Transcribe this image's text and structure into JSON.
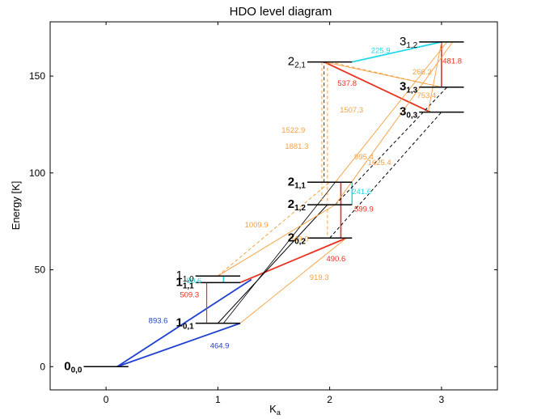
{
  "chart_data": {
    "type": "level-diagram",
    "title": "HDO level diagram",
    "xlabel_main": "K",
    "xlabel_sub": "a",
    "ylabel": "Energy [K]",
    "xlim": [
      -0.5,
      3.5
    ],
    "ylim": [
      -12,
      178
    ],
    "xticks": [
      0,
      1,
      2,
      3
    ],
    "yticks": [
      0,
      50,
      100,
      150
    ],
    "colors": {
      "blue": "#1f3fd0",
      "red": "#e8321e",
      "orange": "#f5a040",
      "cyan": "#22d8e8",
      "black": "#000000"
    },
    "levels": [
      {
        "id": "0_00",
        "main": "0",
        "sub": "0,0",
        "bold": true,
        "x1": -0.2,
        "x2": 0.2,
        "energy": 0
      },
      {
        "id": "1_01",
        "main": "1",
        "sub": "0,1",
        "bold": true,
        "x1": 0.8,
        "x2": 1.2,
        "energy": 22.4
      },
      {
        "id": "1_11",
        "main": "1",
        "sub": "1,1",
        "bold": true,
        "x1": 0.8,
        "x2": 1.2,
        "energy": 43.4
      },
      {
        "id": "1_10",
        "main": "1",
        "sub": "1,0",
        "bold": false,
        "x1": 0.8,
        "x2": 1.2,
        "energy": 46.8
      },
      {
        "id": "2_02",
        "main": "2",
        "sub": "0,2",
        "bold": true,
        "x1": 1.8,
        "x2": 2.2,
        "energy": 66.4
      },
      {
        "id": "2_12",
        "main": "2",
        "sub": "1,2",
        "bold": true,
        "x1": 1.8,
        "x2": 2.2,
        "energy": 83.6
      },
      {
        "id": "2_11",
        "main": "2",
        "sub": "1,1",
        "bold": true,
        "x1": 1.8,
        "x2": 2.2,
        "energy": 95.2
      },
      {
        "id": "2_21",
        "main": "2",
        "sub": "2,1",
        "bold": false,
        "x1": 1.8,
        "x2": 2.2,
        "energy": 157.3
      },
      {
        "id": "3_03",
        "main": "3",
        "sub": "0,3",
        "bold": true,
        "x1": 2.8,
        "x2": 3.2,
        "energy": 131.4
      },
      {
        "id": "3_13",
        "main": "3",
        "sub": "1,3",
        "bold": true,
        "x1": 2.8,
        "x2": 3.2,
        "energy": 144.3
      },
      {
        "id": "3_12",
        "main": "3",
        "sub": "1,2",
        "bold": false,
        "x1": 2.8,
        "x2": 3.2,
        "energy": 167.6
      }
    ],
    "transitions": [
      {
        "from": [
          0.1,
          0
        ],
        "to": [
          1.3,
          45
        ],
        "color": "blue",
        "width": 1.8,
        "dash": false,
        "label": "893.6"
      },
      {
        "from": [
          0.1,
          0
        ],
        "to": [
          1.2,
          22.4
        ],
        "color": "blue",
        "width": 1.8,
        "dash": false,
        "label": "464.9"
      },
      {
        "from": [
          0.9,
          22.4
        ],
        "to": [
          0.9,
          43.4
        ],
        "color": "red",
        "width": 1.2,
        "dash": false,
        "label": "509.3"
      },
      {
        "from": [
          1.2,
          43.4
        ],
        "to": [
          2.15,
          66.4
        ],
        "color": "red",
        "width": 1.8,
        "dash": false,
        "label": "490.6"
      },
      {
        "from": [
          2.1,
          66.4
        ],
        "to": [
          2.1,
          95.2
        ],
        "color": "red",
        "width": 1.6,
        "dash": false,
        "label": ""
      },
      {
        "from": [
          2.2,
          83.6
        ],
        "to": [
          2.2,
          95.2
        ],
        "color": "cyan",
        "width": 1.5,
        "dash": false,
        "label": "241.6"
      },
      {
        "from": [
          1.05,
          43.4
        ],
        "to": [
          1.05,
          46.8
        ],
        "color": "cyan",
        "width": 1.5,
        "dash": false,
        "label": "80.6"
      },
      {
        "from": [
          2.2,
          157.3
        ],
        "to": [
          3.0,
          167.6
        ],
        "color": "cyan",
        "width": 1.8,
        "dash": false,
        "label": "225.9"
      },
      {
        "from": [
          3.0,
          144.3
        ],
        "to": [
          3.0,
          167.6
        ],
        "color": "red",
        "width": 1.6,
        "dash": false,
        "label": "481.8"
      },
      {
        "from": [
          1.95,
          157.3
        ],
        "to": [
          2.9,
          131.4
        ],
        "color": "red",
        "width": 1.8,
        "dash": false,
        "label": "537.8"
      },
      {
        "from": [
          1.0,
          22.4
        ],
        "to": [
          1.98,
          83.6
        ],
        "color": "black",
        "width": 1.0,
        "dash": false,
        "label": ""
      },
      {
        "from": [
          1.05,
          22.4
        ],
        "to": [
          2.05,
          95.2
        ],
        "color": "black",
        "width": 0.8,
        "dash": false,
        "label": ""
      },
      {
        "from": [
          2.0,
          66.4
        ],
        "to": [
          3.0,
          131.4
        ],
        "color": "black",
        "width": 1.0,
        "dash": true,
        "label": ""
      },
      {
        "from": [
          2.05,
          83.6
        ],
        "to": [
          3.05,
          144.3
        ],
        "color": "black",
        "width": 1.0,
        "dash": true,
        "label": ""
      },
      {
        "from": [
          1.95,
          95.2
        ],
        "to": [
          1.95,
          157.3
        ],
        "color": "black",
        "width": 0.8,
        "dash": true,
        "label": ""
      },
      {
        "from": [
          1.0,
          46.8
        ],
        "to": [
          2.0,
          95.2
        ],
        "color": "orange",
        "width": 1.0,
        "dash": true,
        "label": "1009.9"
      },
      {
        "from": [
          1.0,
          46.8
        ],
        "to": [
          2.05,
          83.6
        ],
        "color": "orange",
        "width": 0.9,
        "dash": false,
        "label": "849.0"
      },
      {
        "from": [
          1.2,
          22.4
        ],
        "to": [
          2.15,
          66.4
        ],
        "color": "orange",
        "width": 0.9,
        "dash": false,
        "label": "919.3"
      },
      {
        "from": [
          1.93,
          157.3
        ],
        "to": [
          1.93,
          83.6
        ],
        "color": "orange",
        "width": 1.0,
        "dash": true,
        "label": "1522.9"
      },
      {
        "from": [
          1.98,
          157.3
        ],
        "to": [
          1.98,
          66.4
        ],
        "color": "orange",
        "width": 1.0,
        "dash": true,
        "label": "1881.3"
      },
      {
        "from": [
          2.0,
          157.3
        ],
        "to": [
          3.0,
          144.3
        ],
        "color": "orange",
        "width": 1.0,
        "dash": true,
        "label": "266.2"
      },
      {
        "from": [
          1.95,
          157.3
        ],
        "to": [
          3.0,
          144.3
        ],
        "color": "orange",
        "width": 0.9,
        "dash": false,
        "label": "1507.3"
      },
      {
        "from": [
          3.05,
          167.6
        ],
        "to": [
          2.05,
          95.2
        ],
        "color": "orange",
        "width": 0.9,
        "dash": false,
        "label": "995.4"
      },
      {
        "from": [
          3.1,
          167.6
        ],
        "to": [
          2.05,
          83.6
        ],
        "color": "orange",
        "width": 0.9,
        "dash": false,
        "label": "1625.4"
      },
      {
        "from": [
          3.0,
          167.6
        ],
        "to": [
          2.88,
          131.4
        ],
        "color": "orange",
        "width": 0.9,
        "dash": false,
        "label": "753.4"
      }
    ],
    "transition_labels": [
      {
        "text": "893.6",
        "x": 0.38,
        "y": 22.5,
        "color": "blue"
      },
      {
        "text": "464.9",
        "x": 0.93,
        "y": 9.6,
        "color": "blue"
      },
      {
        "text": "509.3",
        "x": 0.66,
        "y": 35.8,
        "color": "red"
      },
      {
        "text": "80.6",
        "x": 0.72,
        "y": 43.2,
        "color": "cyan"
      },
      {
        "text": "490.6",
        "x": 1.97,
        "y": 54.5,
        "color": "red"
      },
      {
        "text": "241.6",
        "x": 2.2,
        "y": 89.0,
        "color": "cyan"
      },
      {
        "text": "599.9",
        "x": 2.22,
        "y": 80.0,
        "color": "red"
      },
      {
        "text": "225.9",
        "x": 2.37,
        "y": 162.0,
        "color": "cyan"
      },
      {
        "text": "481.8",
        "x": 3.01,
        "y": 156.5,
        "color": "red"
      },
      {
        "text": "537.8",
        "x": 2.07,
        "y": 145.0,
        "color": "red"
      },
      {
        "text": "266.2",
        "x": 2.74,
        "y": 150.8,
        "color": "orange"
      },
      {
        "text": "753.4",
        "x": 2.78,
        "y": 138.8,
        "color": "orange"
      },
      {
        "text": "1507.3",
        "x": 2.09,
        "y": 131.3,
        "color": "orange"
      },
      {
        "text": "1522.9",
        "x": 1.57,
        "y": 120.8,
        "color": "orange"
      },
      {
        "text": "1881.3",
        "x": 1.6,
        "y": 112.5,
        "color": "orange"
      },
      {
        "text": "995.4",
        "x": 2.22,
        "y": 107.0,
        "color": "orange"
      },
      {
        "text": "1625.4",
        "x": 2.34,
        "y": 104.0,
        "color": "orange"
      },
      {
        "text": "1009.9",
        "x": 1.24,
        "y": 72.0,
        "color": "orange"
      },
      {
        "text": "849.0",
        "x": 1.64,
        "y": 64.6,
        "color": "orange"
      },
      {
        "text": "919.3",
        "x": 1.82,
        "y": 44.7,
        "color": "orange"
      }
    ]
  }
}
